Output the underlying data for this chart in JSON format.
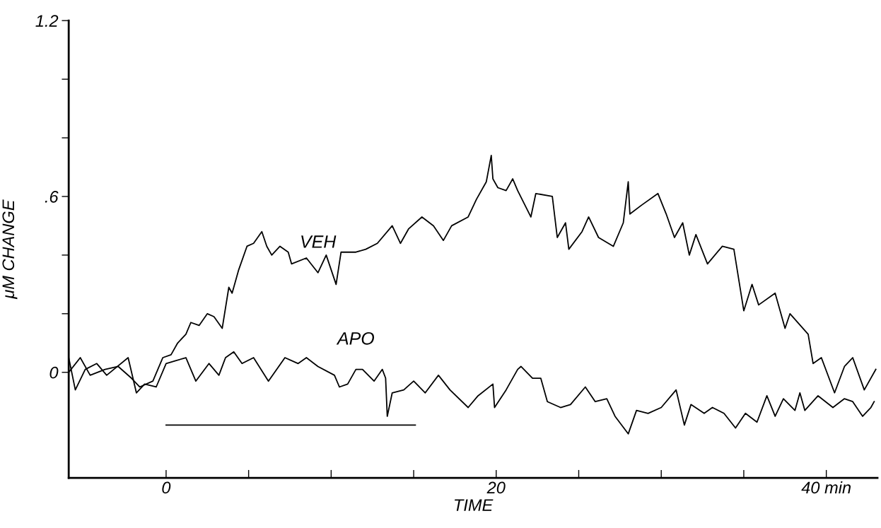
{
  "chart_data": {
    "type": "line",
    "xlabel": "TIME",
    "ylabel": "μM CHANGE",
    "xlim": [
      -5.9,
      43.1
    ],
    "ylim": [
      -0.36,
      1.2
    ],
    "xticks": [
      {
        "value": 0,
        "label": "0"
      },
      {
        "value": 5,
        "label": null
      },
      {
        "value": 10,
        "label": null
      },
      {
        "value": 15,
        "label": null
      },
      {
        "value": 20,
        "label": "20"
      },
      {
        "value": 25,
        "label": null
      },
      {
        "value": 30,
        "label": null
      },
      {
        "value": 35,
        "label": null
      },
      {
        "value": 40,
        "label": "40 min"
      }
    ],
    "yticks": [
      {
        "value": 0,
        "label": "0"
      },
      {
        "value": 0.2,
        "label": null
      },
      {
        "value": 0.4,
        "label": null
      },
      {
        "value": 0.6,
        "label": ".6"
      },
      {
        "value": 0.8,
        "label": null
      },
      {
        "value": 1.0,
        "label": null
      },
      {
        "value": 1.2,
        "label": "1.2"
      }
    ],
    "grid": false,
    "marker": "none",
    "line_style": "solid",
    "series": [
      {
        "name": "VEH",
        "color": "#000000",
        "x": [
          -5.9,
          -5.2,
          -4.6,
          -3.7,
          -2.9,
          -2.1,
          -1.6,
          -0.8,
          -0.2,
          0.3,
          0.7,
          1.2,
          1.5,
          2.0,
          2.5,
          2.9,
          3.4,
          3.8,
          4.0,
          4.4,
          4.9,
          5.3,
          5.8,
          6.1,
          6.4,
          6.9,
          7.4,
          7.6,
          8.5,
          9.2,
          9.7,
          10.3,
          10.6,
          11.5,
          12.1,
          12.8,
          13.7,
          14.2,
          14.7,
          15.5,
          16.2,
          16.8,
          17.3,
          18.3,
          18.8,
          19.4,
          19.7,
          19.8,
          20.1,
          20.6,
          21.0,
          21.3,
          22.1,
          22.4,
          23.4,
          23.7,
          24.2,
          24.4,
          25.2,
          25.6,
          26.2,
          27.1,
          27.7,
          28.0,
          28.1,
          28.8,
          29.8,
          30.3,
          30.8,
          31.3,
          31.7,
          32.1,
          32.8,
          33.7,
          34.4,
          35.0,
          35.5,
          35.9,
          36.9,
          37.5,
          37.8,
          38.9,
          39.2,
          39.7,
          40.5,
          41.1,
          41.6,
          42.3,
          43.0
        ],
        "values": [
          0.0,
          0.05,
          -0.01,
          0.01,
          0.02,
          -0.02,
          -0.05,
          -0.03,
          0.05,
          0.06,
          0.1,
          0.13,
          0.17,
          0.16,
          0.2,
          0.19,
          0.15,
          0.29,
          0.27,
          0.35,
          0.43,
          0.44,
          0.48,
          0.43,
          0.4,
          0.43,
          0.41,
          0.37,
          0.39,
          0.34,
          0.4,
          0.3,
          0.41,
          0.41,
          0.42,
          0.44,
          0.5,
          0.44,
          0.49,
          0.53,
          0.5,
          0.45,
          0.5,
          0.53,
          0.59,
          0.65,
          0.74,
          0.66,
          0.63,
          0.62,
          0.66,
          0.62,
          0.53,
          0.61,
          0.6,
          0.46,
          0.51,
          0.42,
          0.48,
          0.53,
          0.46,
          0.43,
          0.51,
          0.65,
          0.54,
          0.57,
          0.61,
          0.54,
          0.46,
          0.51,
          0.4,
          0.47,
          0.37,
          0.43,
          0.42,
          0.21,
          0.3,
          0.23,
          0.27,
          0.15,
          0.2,
          0.13,
          0.03,
          0.05,
          -0.07,
          0.02,
          0.05,
          -0.06,
          0.01
        ]
      },
      {
        "name": "APO",
        "color": "#000000",
        "x": [
          -5.9,
          -5.5,
          -4.9,
          -4.2,
          -3.6,
          -2.3,
          -1.8,
          -1.3,
          -0.6,
          0.0,
          1.2,
          1.8,
          2.6,
          3.2,
          3.6,
          4.1,
          4.6,
          5.3,
          6.2,
          7.2,
          8.0,
          8.5,
          9.2,
          10.2,
          10.5,
          11.0,
          11.5,
          11.9,
          12.6,
          13.1,
          13.3,
          13.4,
          13.7,
          14.4,
          15.0,
          15.7,
          16.5,
          17.2,
          18.3,
          18.9,
          19.8,
          19.9,
          20.6,
          21.3,
          21.5,
          22.2,
          22.7,
          23.1,
          23.9,
          24.5,
          25.4,
          26.0,
          26.7,
          27.2,
          28.0,
          28.5,
          29.2,
          30.0,
          30.9,
          31.4,
          31.8,
          32.6,
          33.1,
          33.8,
          34.5,
          35.1,
          35.8,
          36.4,
          36.9,
          37.4,
          38.1,
          38.4,
          38.7,
          39.5,
          40.4,
          41.1,
          41.6,
          42.2,
          42.7,
          42.9
        ],
        "values": [
          0.05,
          -0.06,
          0.01,
          0.03,
          -0.01,
          0.05,
          -0.07,
          -0.04,
          -0.05,
          0.03,
          0.05,
          -0.03,
          0.03,
          -0.01,
          0.05,
          0.07,
          0.03,
          0.05,
          -0.03,
          0.05,
          0.03,
          0.05,
          0.02,
          -0.01,
          -0.05,
          -0.04,
          0.01,
          0.01,
          -0.03,
          0.01,
          -0.02,
          -0.15,
          -0.07,
          -0.06,
          -0.03,
          -0.07,
          -0.01,
          -0.06,
          -0.12,
          -0.08,
          -0.04,
          -0.12,
          -0.06,
          0.01,
          0.02,
          -0.02,
          -0.02,
          -0.1,
          -0.12,
          -0.11,
          -0.05,
          -0.1,
          -0.09,
          -0.15,
          -0.21,
          -0.13,
          -0.14,
          -0.12,
          -0.06,
          -0.18,
          -0.11,
          -0.14,
          -0.12,
          -0.14,
          -0.19,
          -0.14,
          -0.17,
          -0.08,
          -0.15,
          -0.09,
          -0.13,
          -0.07,
          -0.13,
          -0.08,
          -0.12,
          -0.09,
          -0.1,
          -0.15,
          -0.12,
          -0.1
        ]
      },
      {
        "color": "#000000",
        "x": [
          0,
          15.1
        ],
        "values": [
          -0.18,
          -0.18
        ]
      }
    ]
  }
}
